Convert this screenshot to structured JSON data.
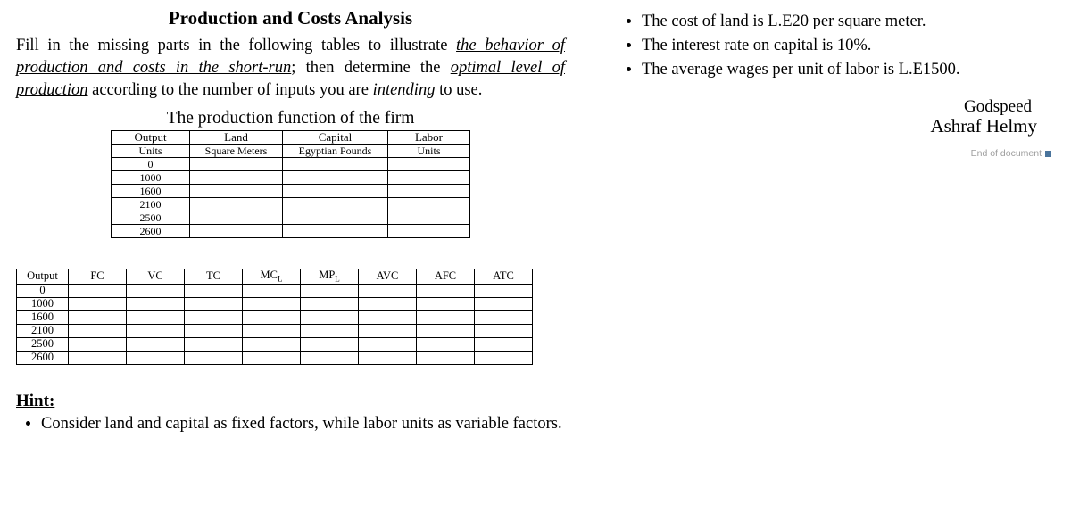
{
  "title": "Production and Costs Analysis",
  "intro": {
    "p1a": "Fill in the missing parts in the following tables to illustrate ",
    "p1u": "the behavior of production and costs in the short-run",
    "p1b": "; then determine the ",
    "p1u2": "optimal level of production",
    "p1c": " according to the number of inputs you are ",
    "p1i": "intending",
    "p1d": " to use."
  },
  "section1_title": "The production function of the firm",
  "table1": {
    "headers1": [
      "Output",
      "Land",
      "Capital",
      "Labor"
    ],
    "headers2": [
      "Units",
      "Square Meters",
      "Egyptian Pounds",
      "Units"
    ],
    "outputs": [
      "0",
      "1000",
      "1600",
      "2100",
      "2500",
      "2600"
    ]
  },
  "table2": {
    "headers": [
      "Output",
      "FC",
      "VC",
      "TC",
      "MC_L",
      "MP_L",
      "AVC",
      "AFC",
      "ATC"
    ],
    "outputs": [
      "0",
      "1000",
      "1600",
      "2100",
      "2500",
      "2600"
    ]
  },
  "hint_label": "Hint:",
  "hint_item": "Consider land and capital as fixed factors, while labor units as variable factors.",
  "right_items": [
    "The cost of land is L.E20 per square meter.",
    "The interest rate on capital is 10%.",
    "The average wages per unit of labor is L.E1500."
  ],
  "godspeed": "Godspeed",
  "signature": "Ashraf Helmy",
  "end_label": "End of document",
  "colors": {
    "text": "#000000",
    "border": "#000000",
    "muted": "#9e9e9e",
    "accent": "#4a749c",
    "bg": "#ffffff"
  },
  "fonts": {
    "body": "Times New Roman",
    "body_size_pt": 14,
    "table_size_pt": 9,
    "signature": "Brush Script MT"
  }
}
